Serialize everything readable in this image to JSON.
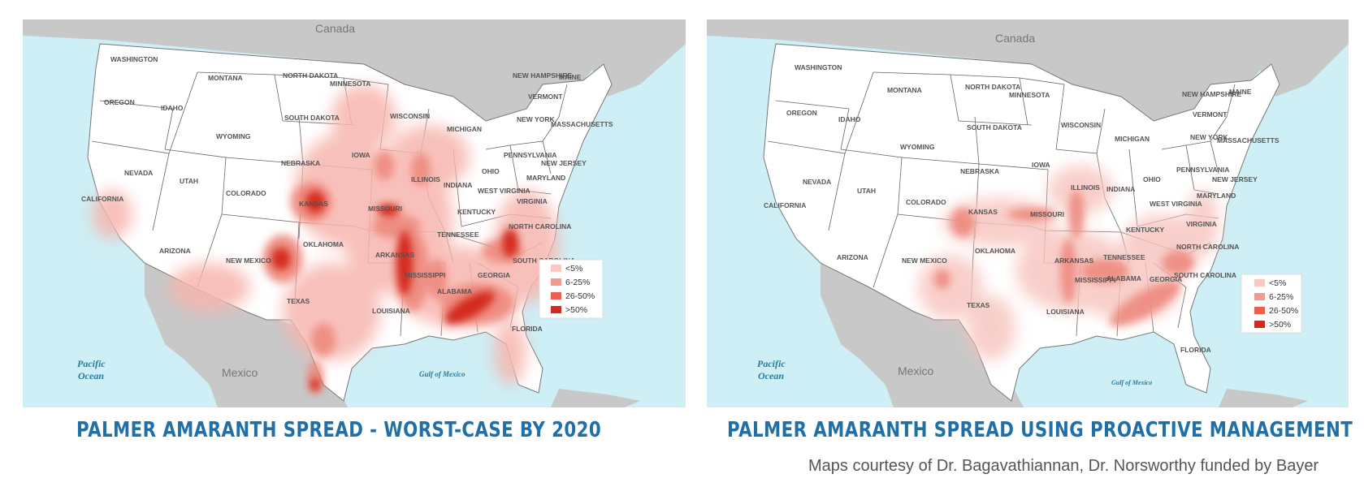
{
  "colors": {
    "ocean": "#cdeff5",
    "land_us": "#ffffff",
    "land_other": "#c8c8c8",
    "border": "#666666",
    "legend": [
      "#f9c9c4",
      "#f29a90",
      "#e8614f",
      "#d42a1c"
    ]
  },
  "maps": [
    {
      "caption": "PALMER AMARANTH SPREAD - WORST-CASE BY 2020",
      "labels": {
        "canada": "Canada",
        "mexico": "Mexico",
        "pacific_1": "Pacific",
        "pacific_2": "Ocean",
        "gulf": "Gulf of Mexico"
      },
      "states": [
        "WASHINGTON",
        "OREGON",
        "IDAHO",
        "MONTANA",
        "WYOMING",
        "NEVADA",
        "CALIFORNIA",
        "UTAH",
        "COLORADO",
        "ARIZONA",
        "NEW MEXICO",
        "NORTH DAKOTA",
        "SOUTH DAKOTA",
        "NEBRASKA",
        "KANSAS",
        "OKLAHOMA",
        "TEXAS",
        "MINNESOTA",
        "IOWA",
        "MISSOURI",
        "ARKANSAS",
        "LOUISIANA",
        "WISCONSIN",
        "ILLINOIS",
        "MICHIGAN",
        "INDIANA",
        "OHIO",
        "KENTUCKY",
        "TENNESSEE",
        "MISSISSIPPI",
        "ALABAMA",
        "GEORGIA",
        "FLORIDA",
        "SOUTH CAROLINA",
        "NORTH CAROLINA",
        "VIRGINIA",
        "WEST VIRGINIA",
        "PENNSYLVANIA",
        "NEW YORK",
        "MARYLAND",
        "NEW JERSEY",
        "MASSACHUSETTS",
        "VERMONT",
        "NEW HAMPSHIRE",
        "MAINE"
      ],
      "legend": [
        "<5%",
        "6-25%",
        "26-50%",
        ">50%"
      ]
    },
    {
      "caption": "PALMER AMARANTH SPREAD USING PROACTIVE MANAGEMENT",
      "labels": {
        "canada": "Canada",
        "mexico": "Mexico",
        "pacific_1": "Pacific",
        "pacific_2": "Ocean",
        "gulf": "Gulf of Mexico"
      },
      "states": [
        "WASHINGTON",
        "OREGON",
        "IDAHO",
        "MONTANA",
        "WYOMING",
        "NEVADA",
        "CALIFORNIA",
        "UTAH",
        "COLORADO",
        "ARIZONA",
        "NEW MEXICO",
        "NORTH DAKOTA",
        "SOUTH DAKOTA",
        "NEBRASKA",
        "KANSAS",
        "OKLAHOMA",
        "TEXAS",
        "MINNESOTA",
        "IOWA",
        "MISSOURI",
        "ARKANSAS",
        "LOUISIANA",
        "WISCONSIN",
        "ILLINOIS",
        "MICHIGAN",
        "INDIANA",
        "OHIO",
        "KENTUCKY",
        "TENNESSEE",
        "MISSISSIPPI",
        "ALABAMA",
        "GEORGIA",
        "FLORIDA",
        "SOUTH CAROLINA",
        "NORTH CAROLINA",
        "VIRGINIA",
        "WEST VIRGINIA",
        "PENNSYLVANIA",
        "NEW YORK",
        "MARYLAND",
        "NEW JERSEY",
        "MASSACHUSETTS",
        "VERMONT",
        "NEW HAMPSHIRE",
        "MAINE"
      ],
      "legend": [
        "<5%",
        "6-25%",
        "26-50%",
        ">50%"
      ]
    }
  ],
  "credit": "Maps courtesy of Dr. Bagavathiannan, Dr. Norsworthy funded by Bayer"
}
